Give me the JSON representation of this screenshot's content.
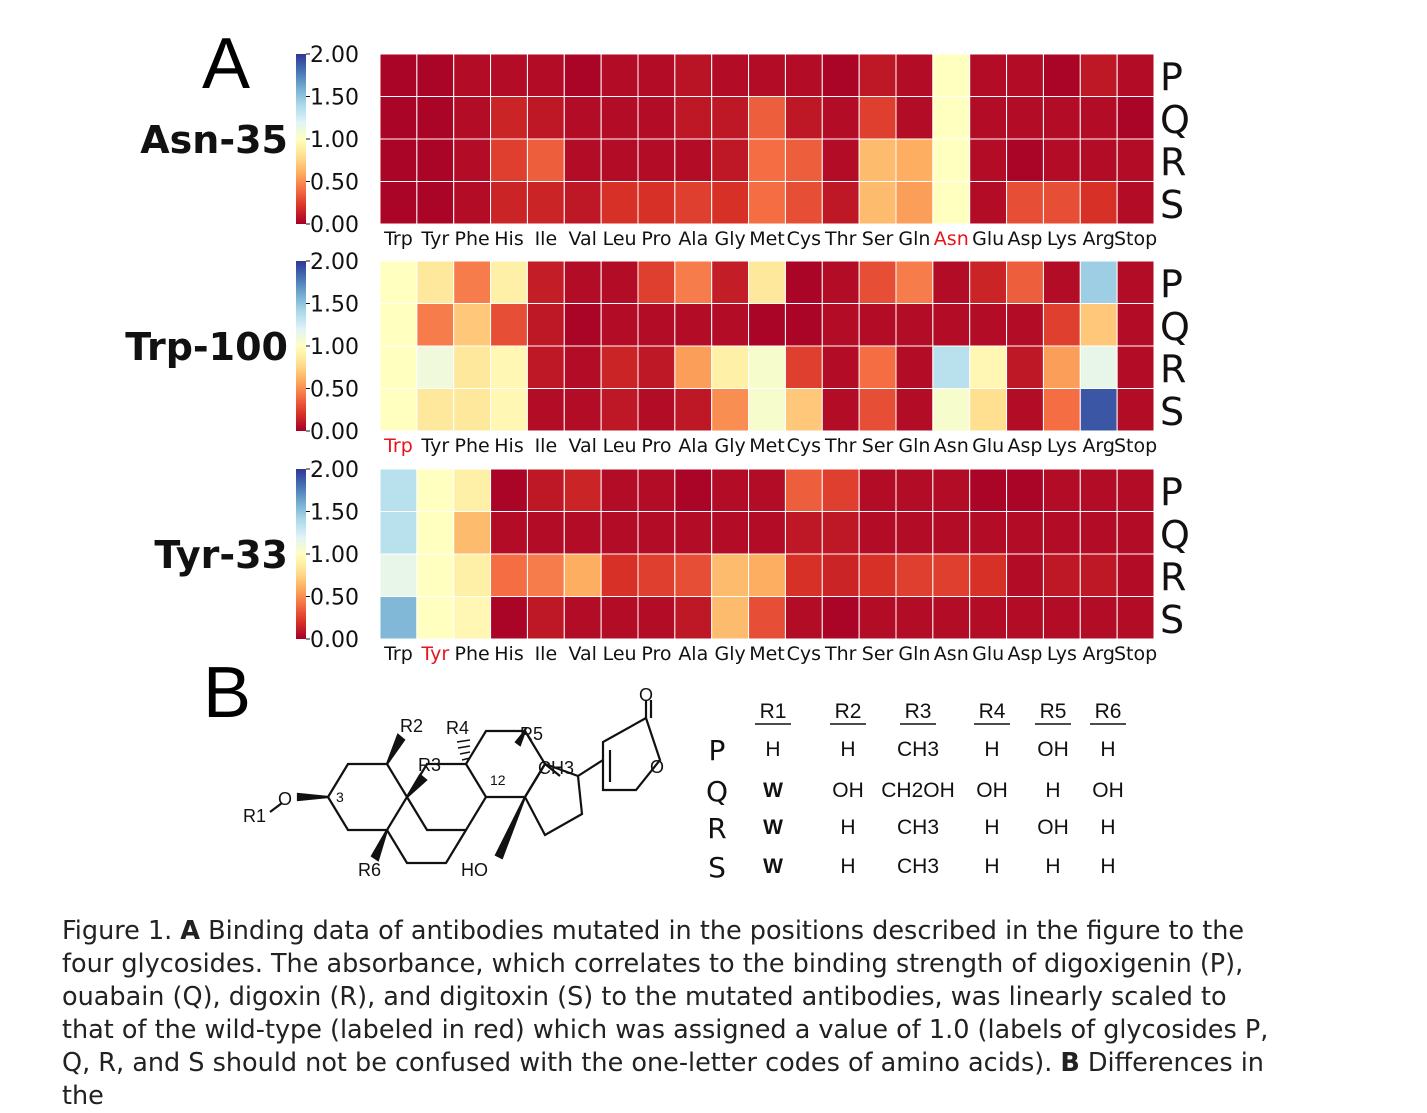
{
  "panel_labels": {
    "a": "A",
    "b": "B"
  },
  "heatmaps": {
    "colorbar_ticks": [
      "2.00",
      "1.50",
      "1.00",
      "0.50",
      "0.00"
    ],
    "row_labels": [
      "P",
      "Q",
      "R",
      "S"
    ]
  },
  "chart_data": [
    {
      "type": "heatmap",
      "title": "Asn-35",
      "categories": [
        "Trp",
        "Tyr",
        "Phe",
        "His",
        "Ile",
        "Val",
        "Leu",
        "Pro",
        "Ala",
        "Gly",
        "Met",
        "Cys",
        "Thr",
        "Ser",
        "Gln",
        "Asn",
        "Glu",
        "Asp",
        "Lys",
        "Arg",
        "Stop"
      ],
      "rows": [
        "P",
        "Q",
        "R",
        "S"
      ],
      "wildtype": "Asn",
      "clim": [
        0,
        2
      ],
      "values": [
        [
          0.02,
          0.02,
          0.05,
          0.05,
          0.05,
          0.02,
          0.05,
          0.05,
          0.08,
          0.05,
          0.05,
          0.05,
          0.02,
          0.1,
          0.05,
          1.0,
          0.05,
          0.05,
          0.02,
          0.1,
          0.05
        ],
        [
          0.02,
          0.02,
          0.05,
          0.15,
          0.1,
          0.05,
          0.05,
          0.05,
          0.1,
          0.1,
          0.35,
          0.1,
          0.05,
          0.25,
          0.05,
          1.0,
          0.05,
          0.05,
          0.05,
          0.05,
          0.02
        ],
        [
          0.02,
          0.02,
          0.05,
          0.25,
          0.35,
          0.05,
          0.05,
          0.05,
          0.05,
          0.1,
          0.4,
          0.35,
          0.05,
          0.65,
          0.6,
          1.0,
          0.05,
          0.02,
          0.05,
          0.05,
          0.05
        ],
        [
          0.02,
          0.02,
          0.05,
          0.15,
          0.15,
          0.1,
          0.2,
          0.2,
          0.25,
          0.2,
          0.4,
          0.3,
          0.1,
          0.65,
          0.55,
          1.0,
          0.05,
          0.3,
          0.3,
          0.2,
          0.05
        ]
      ]
    },
    {
      "type": "heatmap",
      "title": "Trp-100",
      "categories": [
        "Trp",
        "Tyr",
        "Phe",
        "His",
        "Ile",
        "Val",
        "Leu",
        "Pro",
        "Ala",
        "Gly",
        "Met",
        "Cys",
        "Thr",
        "Ser",
        "Gln",
        "Asn",
        "Glu",
        "Asp",
        "Lys",
        "Arg",
        "Stop"
      ],
      "rows": [
        "P",
        "Q",
        "R",
        "S"
      ],
      "wildtype": "Trp",
      "clim": [
        0,
        2
      ],
      "values": [
        [
          1.0,
          0.85,
          0.45,
          0.9,
          0.12,
          0.05,
          0.05,
          0.25,
          0.45,
          0.12,
          0.85,
          0.02,
          0.05,
          0.3,
          0.45,
          0.05,
          0.15,
          0.35,
          0.05,
          1.45,
          0.05
        ],
        [
          1.0,
          0.45,
          0.7,
          0.3,
          0.1,
          0.02,
          0.05,
          0.05,
          0.05,
          0.05,
          0.02,
          0.02,
          0.05,
          0.05,
          0.05,
          0.05,
          0.05,
          0.05,
          0.25,
          0.7,
          0.05
        ],
        [
          1.0,
          1.1,
          0.85,
          0.95,
          0.1,
          0.05,
          0.15,
          0.1,
          0.55,
          0.9,
          1.05,
          0.25,
          0.05,
          0.4,
          0.05,
          1.35,
          0.95,
          0.1,
          0.55,
          1.15,
          0.05
        ],
        [
          1.0,
          0.85,
          0.85,
          0.95,
          0.05,
          0.05,
          0.1,
          0.05,
          0.1,
          0.5,
          1.05,
          0.7,
          0.05,
          0.3,
          0.05,
          1.05,
          0.8,
          0.05,
          0.4,
          1.9,
          0.05
        ]
      ]
    },
    {
      "type": "heatmap",
      "title": "Tyr-33",
      "categories": [
        "Trp",
        "Tyr",
        "Phe",
        "His",
        "Ile",
        "Val",
        "Leu",
        "Pro",
        "Ala",
        "Gly",
        "Met",
        "Cys",
        "Thr",
        "Ser",
        "Gln",
        "Asn",
        "Glu",
        "Asp",
        "Lys",
        "Arg",
        "Stop"
      ],
      "rows": [
        "P",
        "Q",
        "R",
        "S"
      ],
      "wildtype": "Tyr",
      "clim": [
        0,
        2
      ],
      "values": [
        [
          1.35,
          1.0,
          0.9,
          0.02,
          0.1,
          0.15,
          0.05,
          0.05,
          0.02,
          0.05,
          0.05,
          0.35,
          0.25,
          0.05,
          0.05,
          0.05,
          0.02,
          0.02,
          0.05,
          0.05,
          0.05
        ],
        [
          1.35,
          1.0,
          0.65,
          0.05,
          0.05,
          0.05,
          0.05,
          0.05,
          0.05,
          0.05,
          0.05,
          0.1,
          0.1,
          0.05,
          0.05,
          0.05,
          0.05,
          0.05,
          0.05,
          0.05,
          0.05
        ],
        [
          1.15,
          1.0,
          0.9,
          0.4,
          0.45,
          0.6,
          0.2,
          0.25,
          0.3,
          0.65,
          0.6,
          0.2,
          0.15,
          0.2,
          0.25,
          0.25,
          0.2,
          0.05,
          0.1,
          0.1,
          0.05
        ],
        [
          1.55,
          1.0,
          0.95,
          0.02,
          0.1,
          0.05,
          0.05,
          0.05,
          0.1,
          0.65,
          0.3,
          0.05,
          0.02,
          0.05,
          0.05,
          0.05,
          0.05,
          0.05,
          0.05,
          0.05,
          0.05
        ]
      ]
    }
  ],
  "structure": {
    "atom_labels": [
      "R2",
      "R4",
      "R5",
      "R3",
      "12",
      "CH3",
      "O",
      "R1",
      "3",
      "R6",
      "HO",
      "O",
      "O"
    ],
    "table": {
      "headers": [
        "R1",
        "R2",
        "R3",
        "R4",
        "R5",
        "R6"
      ],
      "rows": [
        {
          "label": "P",
          "cells": [
            "H",
            "H",
            "CH3",
            "H",
            "OH",
            "H"
          ]
        },
        {
          "label": "Q",
          "cells": [
            "W",
            "OH",
            "CH2OH",
            "OH",
            "H",
            "OH"
          ]
        },
        {
          "label": "R",
          "cells": [
            "W",
            "H",
            "CH3",
            "H",
            "OH",
            "H"
          ]
        },
        {
          "label": "S",
          "cells": [
            "W",
            "H",
            "CH3",
            "H",
            "H",
            "H"
          ]
        }
      ]
    }
  },
  "caption": {
    "fig_label": "Figure 1.",
    "a_label": "A",
    "a_text": "Binding data of antibodies mutated in the positions described in the figure to the four glycosides.",
    "a_text2": "The absorbance, which correlates to the binding strength of digoxigenin (P), ouabain (Q), digoxin (R), and digitoxin (S) to the mutated antibodies, was linearly scaled to that of the wild-type (labeled in red) which was assigned a value of 1.0 (labels of glycosides P, Q, R, and S should not be confused with the one-letter codes of amino acids).",
    "b_label": "B",
    "b_text": "Differences in the"
  }
}
